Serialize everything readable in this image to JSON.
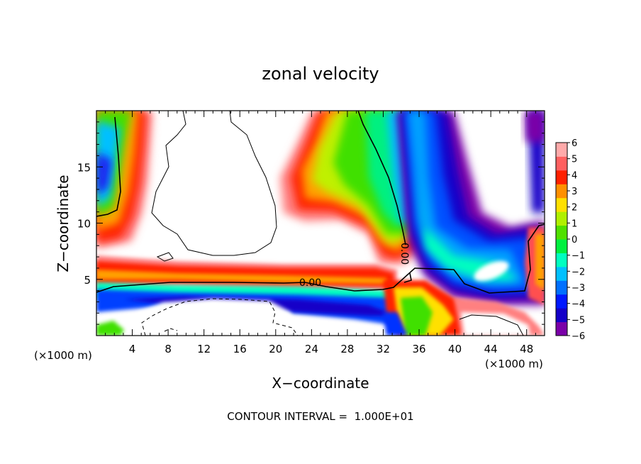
{
  "chart_data": {
    "type": "heatmap",
    "title": "zonal velocity",
    "xlabel": "X−coordinate",
    "ylabel": "Z−coordinate",
    "x_unit_left": "(×1000 m)",
    "x_unit_right": "(×1000 m)",
    "xlim": [
      0,
      50
    ],
    "ylim": [
      0,
      20
    ],
    "x_ticks": [
      4,
      8,
      12,
      16,
      20,
      24,
      28,
      32,
      36,
      40,
      44,
      48
    ],
    "x_tick_labels": [
      "4",
      "8",
      "12",
      "16",
      "20",
      "24",
      "28",
      "32",
      "36",
      "40",
      "44",
      "48"
    ],
    "y_ticks": [
      5,
      10,
      15
    ],
    "y_tick_labels": [
      "5",
      "10",
      "15"
    ],
    "colorbar": {
      "min": -6,
      "max": 6,
      "tick_labels": [
        "6",
        "5",
        "4",
        "3",
        "2",
        "1",
        "0",
        "−1",
        "−2",
        "−3",
        "−4",
        "−5",
        "−6"
      ],
      "colors_low_to_high": [
        "#7a00a8",
        "#1400c8",
        "#0018ff",
        "#0070ff",
        "#00c0ff",
        "#00ffc0",
        "#00f040",
        "#50e000",
        "#b0f000",
        "#ffe000",
        "#ff9000",
        "#ff2000",
        "#ff6060",
        "#ffaaaa"
      ]
    },
    "contour_labels": [
      "0.00",
      "0.00"
    ],
    "annotation": "CONTOUR INTERVAL =  1.000E+01"
  }
}
